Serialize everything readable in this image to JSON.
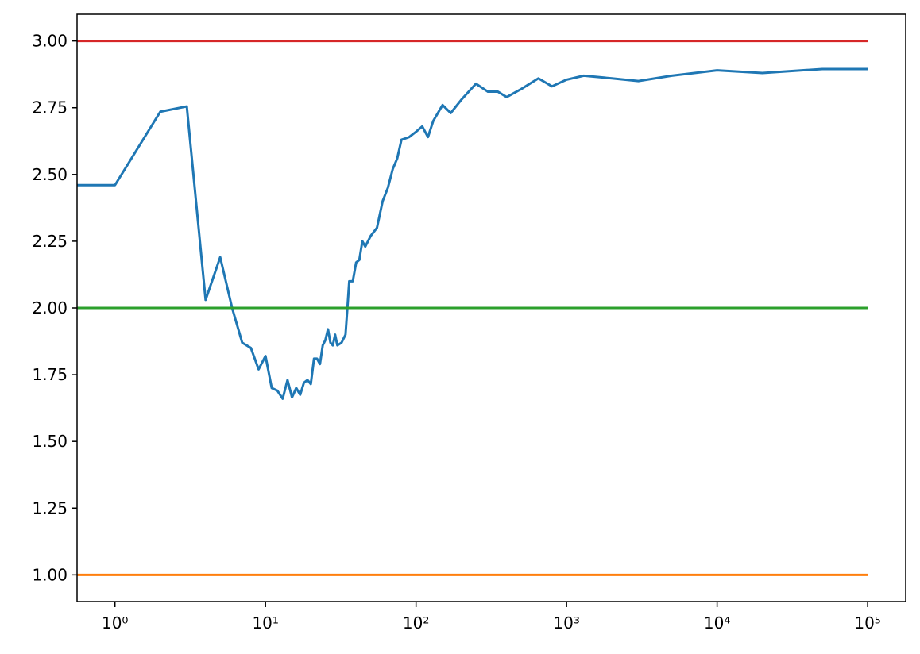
{
  "chart_data": {
    "type": "line",
    "xscale": "log",
    "xlim": [
      0.56,
      179000
    ],
    "ylim": [
      0.9,
      3.1
    ],
    "xticks": [
      {
        "value": 1,
        "label": "10⁰"
      },
      {
        "value": 10,
        "label": "10¹"
      },
      {
        "value": 100,
        "label": "10²"
      },
      {
        "value": 1000,
        "label": "10³"
      },
      {
        "value": 10000,
        "label": "10⁴"
      },
      {
        "value": 100000,
        "label": "10⁵"
      }
    ],
    "yticks": [
      {
        "value": 1,
        "label": "1.00"
      },
      {
        "value": 1.25,
        "label": "1.25"
      },
      {
        "value": 1.5,
        "label": "1.50"
      },
      {
        "value": 1.75,
        "label": "1.75"
      },
      {
        "value": 2,
        "label": "2.00"
      },
      {
        "value": 2.25,
        "label": "2.25"
      },
      {
        "value": 2.5,
        "label": "2.50"
      },
      {
        "value": 2.75,
        "label": "2.75"
      },
      {
        "value": 3,
        "label": "3.00"
      }
    ],
    "series": [
      {
        "color": "#1f77b4",
        "x": [
          0.56,
          1,
          2,
          3,
          4,
          5,
          6,
          7,
          8,
          9,
          10,
          11,
          12,
          13,
          14,
          15,
          16,
          17,
          18,
          19,
          20,
          21,
          22,
          23,
          24,
          25,
          26,
          27,
          28,
          29,
          30,
          32,
          34,
          35,
          36,
          38,
          40,
          42,
          44,
          46,
          50,
          55,
          60,
          65,
          70,
          75,
          80,
          90,
          100,
          110,
          120,
          130,
          150,
          170,
          200,
          250,
          300,
          350,
          400,
          500,
          650,
          800,
          1000,
          1300,
          2000,
          3000,
          5000,
          10000,
          20000,
          50000,
          100000
        ],
        "values": [
          2.46,
          2.46,
          2.735,
          2.755,
          2.03,
          2.19,
          2.0,
          1.87,
          1.85,
          1.77,
          1.82,
          1.7,
          1.69,
          1.66,
          1.73,
          1.665,
          1.7,
          1.675,
          1.72,
          1.73,
          1.715,
          1.81,
          1.81,
          1.79,
          1.86,
          1.88,
          1.92,
          1.87,
          1.86,
          1.9,
          1.86,
          1.87,
          1.9,
          2.0,
          2.1,
          2.1,
          2.17,
          2.18,
          2.25,
          2.23,
          2.27,
          2.3,
          2.4,
          2.45,
          2.52,
          2.56,
          2.63,
          2.64,
          2.66,
          2.68,
          2.64,
          2.7,
          2.76,
          2.73,
          2.78,
          2.84,
          2.81,
          2.81,
          2.79,
          2.82,
          2.86,
          2.83,
          2.855,
          2.87,
          2.86,
          2.85,
          2.87,
          2.89,
          2.88,
          2.895,
          2.895
        ]
      },
      {
        "color": "#ff7f0e",
        "x": [
          0.56,
          100000
        ],
        "values": [
          1,
          1
        ]
      },
      {
        "color": "#2ca02c",
        "x": [
          0.56,
          100000
        ],
        "values": [
          2,
          2
        ]
      },
      {
        "color": "#d62728",
        "x": [
          0.56,
          100000
        ],
        "values": [
          3,
          3
        ]
      }
    ]
  }
}
